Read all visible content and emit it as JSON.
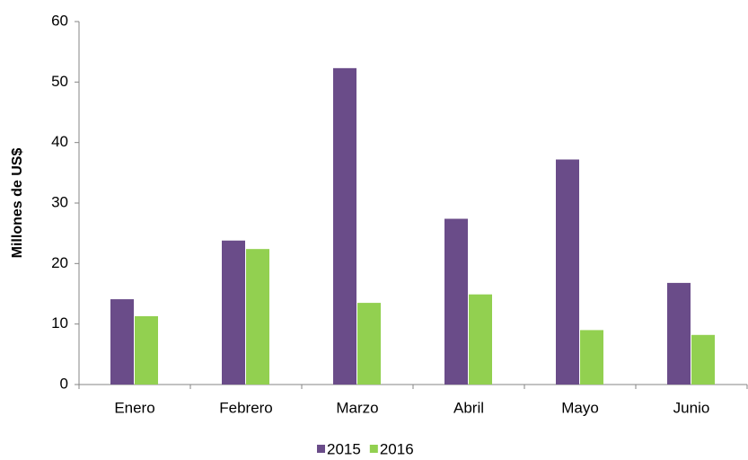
{
  "chart_data": {
    "type": "bar",
    "y_label": "Millones de US$",
    "categories": [
      "Enero",
      "Febrero",
      "Marzo",
      "Abril",
      "Mayo",
      "Junio"
    ],
    "series": [
      {
        "name": "2015",
        "color": "#6a4c89",
        "values": [
          14.1,
          23.8,
          52.3,
          27.4,
          37.2,
          16.8
        ]
      },
      {
        "name": "2016",
        "color": "#92d050",
        "values": [
          11.3,
          22.4,
          13.5,
          14.9,
          9.0,
          8.2
        ]
      }
    ],
    "ylim": [
      0,
      60
    ],
    "yticks": [
      0,
      10,
      20,
      30,
      40,
      50,
      60
    ],
    "grid": false,
    "legend": "bottom"
  }
}
